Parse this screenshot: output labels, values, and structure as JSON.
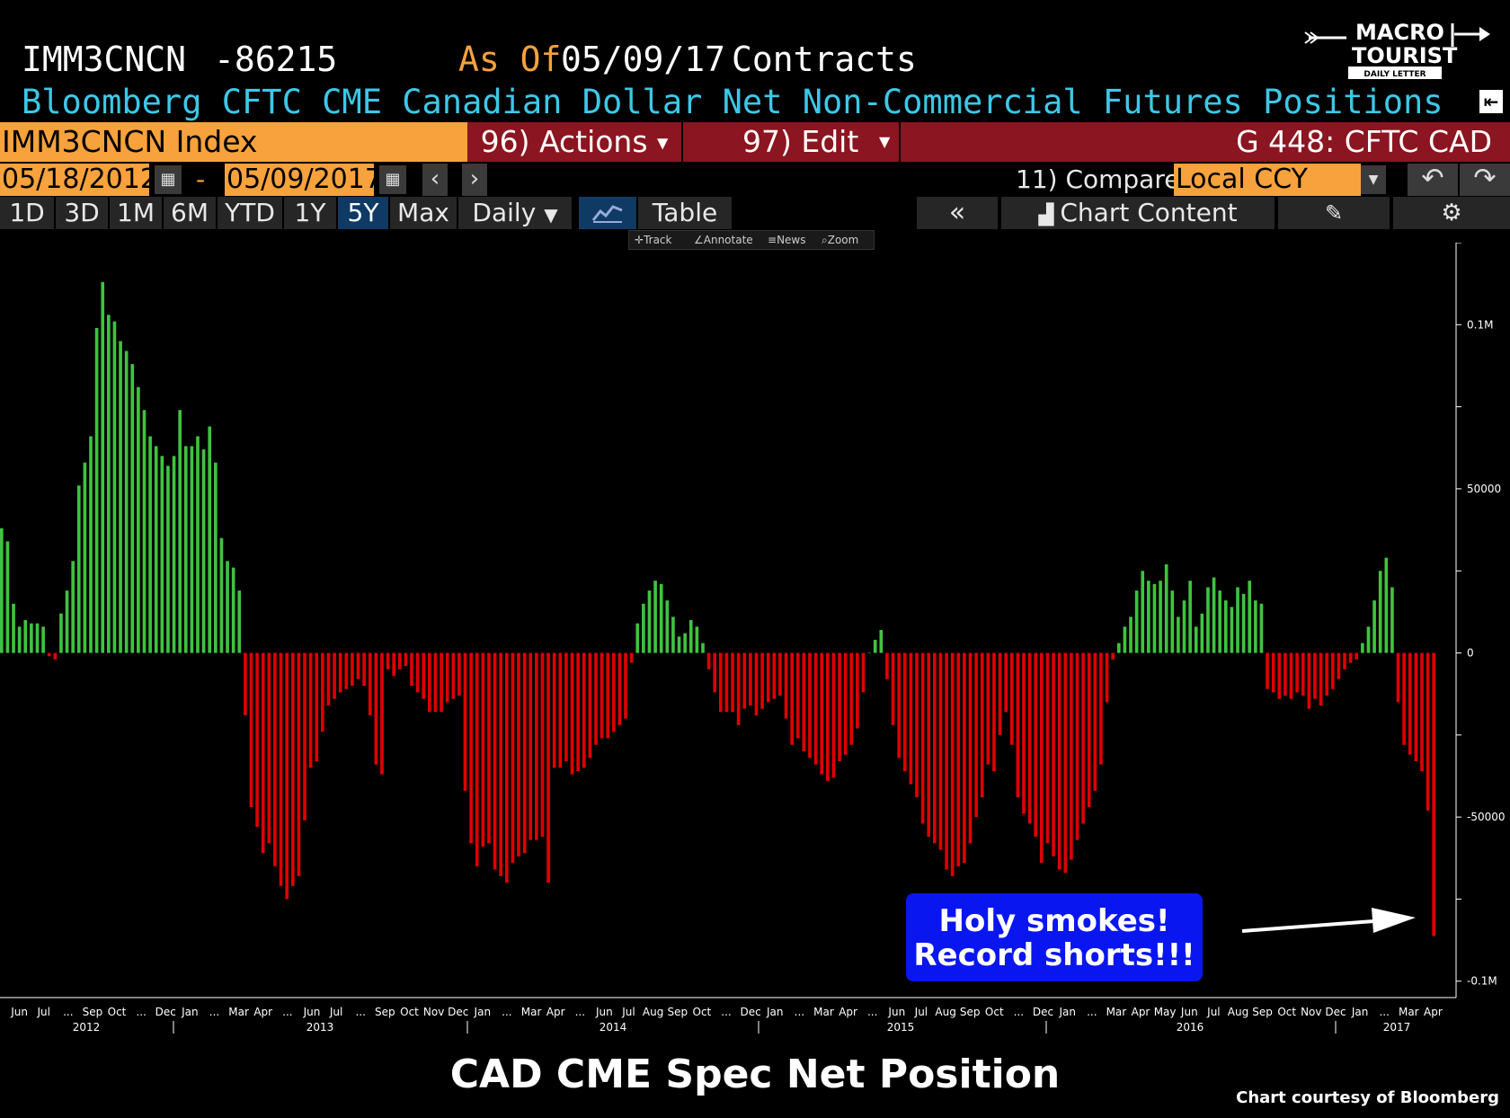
{
  "header": {
    "ticker": "IMM3CNCN",
    "last_value": "-86215",
    "as_of_label": "As Of",
    "as_of_date": "05/09/17",
    "units": "Contracts",
    "description": "Bloomberg CFTC CME Canadian Dollar Net Non-Commercial Futures Positions"
  },
  "logo": {
    "line1": "MACRO",
    "line2": "TOURIST",
    "tagline": "DAILY LETTER"
  },
  "command_bar": {
    "security": "IMM3CNCN Index",
    "actions_label": "96) Actions",
    "edit_label": "97) Edit",
    "chart_name": "G 448: CFTC CAD"
  },
  "date_bar": {
    "start_date": "05/18/2012",
    "separator": "-",
    "end_date": "05/09/2017",
    "compare_label": "11) Compare",
    "currency": "Local CCY"
  },
  "toolbar": {
    "ranges": [
      "1D",
      "3D",
      "1M",
      "6M",
      "YTD",
      "1Y",
      "5Y",
      "Max"
    ],
    "active_range": "5Y",
    "frequency": "Daily",
    "table_label": "Table",
    "chart_content_label": "Chart Content"
  },
  "chart_tools": {
    "track": "Track",
    "annotate": "Annotate",
    "news": "News",
    "zoom": "Zoom"
  },
  "colors": {
    "positive": "#3fc33f",
    "negative": "#e00000",
    "accent": "#f7a23c",
    "title_bar": "#8b1520",
    "header_text": "#3cc8e8"
  },
  "chart_data": {
    "type": "bar",
    "ylim": [
      -105000,
      125000
    ],
    "y_ticks": [
      100000,
      50000,
      0,
      -50000,
      -100000
    ],
    "y_tick_labels": [
      "0.1M",
      "50000",
      "0",
      "-50000",
      "-0.1M"
    ],
    "x_labels": [
      "Jun",
      "Jul",
      "...",
      "Sep",
      "Oct",
      "...",
      "Dec",
      "Jan",
      "...",
      "Mar",
      "Apr",
      "...",
      "Jun",
      "Jul",
      "...",
      "Sep",
      "Oct",
      "Nov",
      "Dec",
      "Jan",
      "...",
      "Mar",
      "Apr",
      "...",
      "Jun",
      "Jul",
      "Aug",
      "Sep",
      "Oct",
      "...",
      "Dec",
      "Jan",
      "...",
      "Mar",
      "Apr",
      "...",
      "Jun",
      "Jul",
      "Aug",
      "Sep",
      "Oct",
      "...",
      "Dec",
      "Jan",
      "...",
      "Mar",
      "Apr",
      "May",
      "Jun",
      "Jul",
      "Aug",
      "Sep",
      "Oct",
      "Nov",
      "Dec",
      "Jan",
      "...",
      "Mar",
      "Apr"
    ],
    "years": [
      "2012",
      "2013",
      "2014",
      "2015",
      "2016",
      "2017"
    ],
    "values": [
      38000,
      34000,
      15000,
      8000,
      10000,
      9000,
      9000,
      8000,
      -1000,
      -2000,
      12000,
      19000,
      28000,
      51000,
      58000,
      66000,
      99000,
      113000,
      103000,
      101000,
      95000,
      92000,
      88000,
      81000,
      74000,
      66000,
      63000,
      60000,
      57000,
      60000,
      74000,
      63000,
      63000,
      66000,
      62000,
      69000,
      58000,
      35000,
      28000,
      26000,
      19000,
      -19000,
      -47000,
      -53000,
      -61000,
      -58000,
      -65000,
      -71000,
      -75000,
      -71000,
      -68000,
      -51000,
      -35000,
      -33000,
      -24000,
      -16000,
      -14000,
      -12000,
      -11000,
      -10000,
      -8000,
      -10000,
      -19000,
      -34000,
      -37000,
      -5000,
      -7000,
      -5000,
      -4000,
      -10000,
      -12000,
      -14000,
      -18000,
      -18000,
      -18000,
      -15000,
      -14000,
      -13000,
      -42000,
      -58000,
      -65000,
      -59000,
      -58000,
      -66000,
      -68000,
      -70000,
      -64000,
      -62000,
      -61000,
      -57000,
      -57000,
      -56000,
      -70000,
      -35000,
      -35000,
      -33000,
      -37000,
      -36000,
      -35000,
      -32000,
      -28000,
      -26000,
      -26000,
      -24000,
      -22000,
      -20000,
      -3000,
      9000,
      15000,
      19000,
      22000,
      21000,
      16000,
      11000,
      5000,
      6000,
      10000,
      8000,
      3000,
      -5000,
      -12000,
      -18000,
      -18000,
      -18000,
      -22000,
      -17000,
      -16000,
      -19000,
      -17000,
      -15000,
      -14000,
      -13000,
      -20000,
      -28000,
      -26000,
      -30000,
      -32000,
      -34000,
      -37000,
      -39000,
      -38000,
      -33000,
      -31000,
      -28000,
      -23000,
      -12000,
      0,
      4000,
      7000,
      -8000,
      -22000,
      -32000,
      -36000,
      -40000,
      -44000,
      -52000,
      -56000,
      -58000,
      -60000,
      -66000,
      -68000,
      -65000,
      -64000,
      -58000,
      -50000,
      -44000,
      -34000,
      -36000,
      -25000,
      -18000,
      -28000,
      -44000,
      -49000,
      -52000,
      -56000,
      -64000,
      -58000,
      -62000,
      -66000,
      -67000,
      -63000,
      -57000,
      -52000,
      -47000,
      -42000,
      -34000,
      -15000,
      -2000,
      3000,
      8000,
      11000,
      19000,
      25000,
      22000,
      21000,
      22000,
      27000,
      19000,
      11000,
      16000,
      22000,
      8000,
      12000,
      20000,
      23000,
      19000,
      16000,
      14000,
      20000,
      18000,
      22000,
      16000,
      15000,
      -11000,
      -12000,
      -14000,
      -13000,
      -14000,
      -12000,
      -13000,
      -17000,
      -14000,
      -16000,
      -13000,
      -11000,
      -8000,
      -5000,
      -3000,
      -2000,
      3000,
      8000,
      16000,
      25000,
      29000,
      20000,
      -15000,
      -28000,
      -31000,
      -33000,
      -36000,
      -48000,
      -86215
    ]
  },
  "annotation": {
    "line1": "Holy smokes!",
    "line2": "Record shorts!!!"
  },
  "footer": {
    "title": "CAD CME Spec Net Position",
    "credit": "Chart courtesy of Bloomberg"
  }
}
